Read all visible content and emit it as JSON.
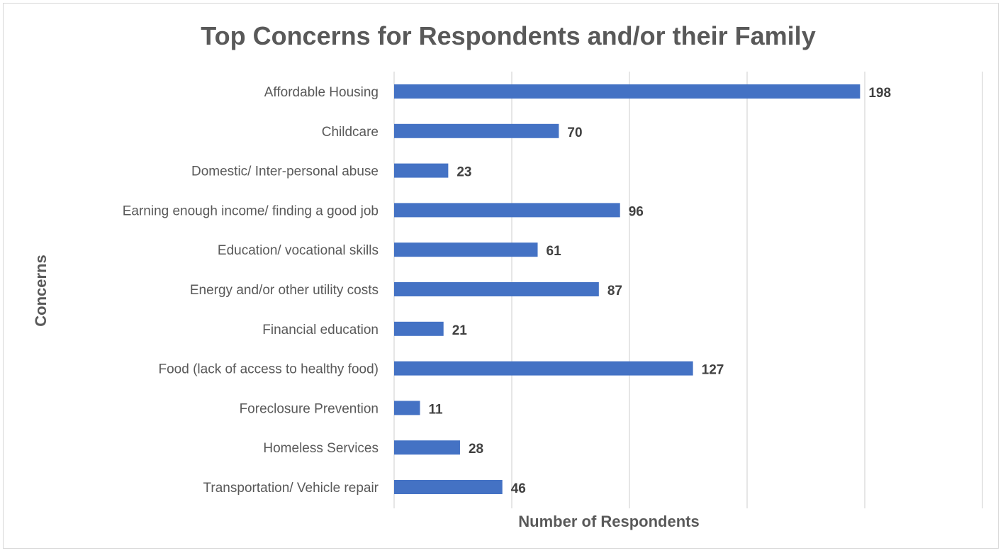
{
  "chart_data": {
    "type": "bar",
    "orientation": "horizontal",
    "title": "Top Concerns for Respondents and/or their Family",
    "xlabel": "Number of Respondents",
    "ylabel": "Concerns",
    "categories": [
      "Affordable Housing",
      "Childcare",
      "Domestic/ Inter-personal abuse",
      "Earning enough income/ finding a good job",
      "Education/ vocational skills",
      "Energy and/or other utility costs",
      "Financial education",
      "Food (lack of access to healthy food)",
      "Foreclosure Prevention",
      "Homeless Services",
      "Transportation/ Vehicle repair"
    ],
    "values": [
      198,
      70,
      23,
      96,
      61,
      87,
      21,
      127,
      11,
      28,
      46
    ],
    "xlim": [
      0,
      250
    ],
    "x_gridlines": [
      0,
      50,
      100,
      150,
      200,
      250
    ],
    "x_tick_labels_shown": false,
    "grid": true,
    "legend": "none",
    "data_labels": true,
    "bar_color": "#4472c4"
  }
}
